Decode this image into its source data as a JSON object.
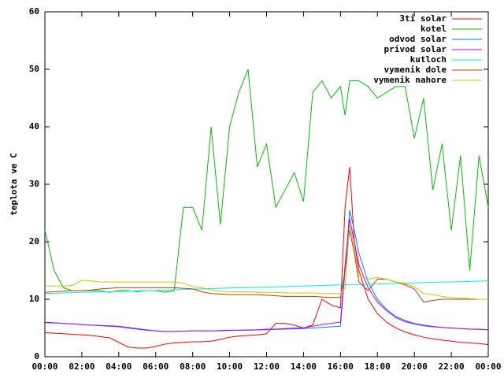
{
  "chart_data": {
    "type": "line",
    "y_label": "teplota ve C",
    "x": [
      0,
      0.5,
      1,
      1.5,
      2,
      2.5,
      3,
      3.5,
      4,
      4.5,
      5,
      5.5,
      6,
      6.5,
      7,
      7.5,
      8,
      8.5,
      9,
      9.5,
      10,
      10.5,
      11,
      11.5,
      12,
      12.5,
      13,
      13.5,
      14,
      14.5,
      15,
      15.5,
      16,
      16.25,
      16.5,
      16.75,
      17,
      17.5,
      18,
      18.5,
      19,
      19.5,
      20,
      20.5,
      21,
      21.5,
      22,
      22.5,
      23,
      23.5,
      24
    ],
    "xlim": [
      0,
      24
    ],
    "xticks": [
      {
        "value": 0,
        "label": "00:00"
      },
      {
        "value": 2,
        "label": "02:00"
      },
      {
        "value": 4,
        "label": "04:00"
      },
      {
        "value": 6,
        "label": "06:00"
      },
      {
        "value": 8,
        "label": "08:00"
      },
      {
        "value": 10,
        "label": "10:00"
      },
      {
        "value": 12,
        "label": "12:00"
      },
      {
        "value": 14,
        "label": "14:00"
      },
      {
        "value": 16,
        "label": "16:00"
      },
      {
        "value": 18,
        "label": "18:00"
      },
      {
        "value": 20,
        "label": "20:00"
      },
      {
        "value": 22,
        "label": "22:00"
      },
      {
        "value": 24,
        "label": "00:00"
      }
    ],
    "ylim": [
      0,
      60
    ],
    "yticks": [
      0,
      10,
      20,
      30,
      40,
      50,
      60
    ],
    "legend": "top-right",
    "series": [
      {
        "name": "3ti solar",
        "color": "#ff0000",
        "values": [
          4.2,
          4.1,
          4,
          3.9,
          3.8,
          3.7,
          3.5,
          3.3,
          2.5,
          1.7,
          1.5,
          1.5,
          1.8,
          2.2,
          2.4,
          2.5,
          2.6,
          2.6,
          2.7,
          3,
          3.4,
          3.6,
          3.7,
          3.8,
          4,
          5.8,
          5.8,
          5.5,
          5,
          5.5,
          10,
          9,
          8.5,
          26,
          33,
          20,
          15,
          10,
          7.5,
          6,
          5,
          4.3,
          3.8,
          3.4,
          3.1,
          2.9,
          2.7,
          2.5,
          2.4,
          2.3,
          2.1
        ]
      },
      {
        "name": "kotel",
        "color": "#00c000",
        "values": [
          22,
          15,
          12,
          11.5,
          11.5,
          11.5,
          11.5,
          11.2,
          11.5,
          11.5,
          11.3,
          11.5,
          11.5,
          11.2,
          11.5,
          26,
          26,
          22,
          40,
          23,
          40,
          46,
          50,
          33,
          37,
          26,
          29,
          32,
          27,
          46,
          48,
          45,
          47,
          42,
          48,
          48,
          48,
          47,
          45,
          46,
          47,
          47,
          38,
          45,
          29,
          37,
          22,
          35,
          15,
          35,
          26
        ]
      },
      {
        "name": "odvod solar",
        "color": "#0080ff",
        "values": [
          5.9,
          5.85,
          5.8,
          5.7,
          5.6,
          5.5,
          5.45,
          5.4,
          5.3,
          5.1,
          4.9,
          4.7,
          4.5,
          4.4,
          4.4,
          4.45,
          4.5,
          4.5,
          4.5,
          4.5,
          4.55,
          4.6,
          4.6,
          4.65,
          4.7,
          4.75,
          4.8,
          4.85,
          4.9,
          5,
          5.1,
          5.2,
          5.3,
          15,
          25.5,
          22,
          18,
          13,
          10,
          8.2,
          7,
          6.3,
          5.8,
          5.5,
          5.3,
          5.1,
          5,
          4.9,
          4.8,
          4.75,
          4.7
        ]
      },
      {
        "name": "privod solar",
        "color": "#c000ff",
        "values": [
          6,
          5.9,
          5.8,
          5.7,
          5.6,
          5.5,
          5.4,
          5.3,
          5.2,
          5,
          4.8,
          4.6,
          4.5,
          4.4,
          4.4,
          4.45,
          4.5,
          4.5,
          4.5,
          4.55,
          4.6,
          4.6,
          4.65,
          4.7,
          4.8,
          4.8,
          4.9,
          5,
          5,
          5.3,
          5.6,
          5.8,
          6,
          16,
          24,
          20,
          16,
          12,
          9.5,
          8,
          6.8,
          6.1,
          5.7,
          5.4,
          5.2,
          5.1,
          5,
          4.9,
          4.8,
          4.8,
          4.7
        ]
      },
      {
        "name": "kutloch",
        "color": "#00eeee",
        "values": [
          11,
          11.05,
          11.1,
          11.15,
          11.2,
          11.25,
          11.3,
          11.3,
          11.35,
          11.4,
          11.45,
          11.5,
          11.55,
          11.6,
          11.65,
          11.7,
          11.75,
          11.8,
          11.85,
          11.9,
          11.95,
          12,
          12,
          12.05,
          12.1,
          12.15,
          12.2,
          12.25,
          12.3,
          12.35,
          12.4,
          12.45,
          12.5,
          12.5,
          12.5,
          12.55,
          12.55,
          12.6,
          12.65,
          12.7,
          12.75,
          12.8,
          12.85,
          12.9,
          12.95,
          13,
          13,
          13.05,
          13.1,
          13.15,
          13.2
        ]
      },
      {
        "name": "vymenik dole",
        "color": "#c04000",
        "values": [
          11.2,
          11.3,
          11.4,
          11.5,
          11.5,
          11.6,
          11.8,
          11.9,
          12,
          12,
          12,
          12,
          12,
          12,
          12,
          11.9,
          11.8,
          11.3,
          11,
          10.9,
          10.8,
          10.8,
          10.8,
          10.8,
          10.7,
          10.6,
          10.5,
          10.5,
          10.5,
          10.5,
          10.4,
          10.3,
          10.3,
          15,
          22,
          18,
          13,
          11.5,
          13.5,
          13.5,
          13,
          12.5,
          11.8,
          9.5,
          9.8,
          10,
          10,
          10,
          10,
          10,
          10
        ]
      },
      {
        "name": "vymenik nahore",
        "color": "#c8c800",
        "values": [
          12.3,
          12.3,
          12.3,
          12.4,
          13.3,
          13.2,
          13,
          13,
          13,
          13,
          13,
          13,
          13,
          13,
          13,
          12.8,
          12.2,
          12,
          11.6,
          11.4,
          11.3,
          11.3,
          11.3,
          11.2,
          11.2,
          11.2,
          11.1,
          11.1,
          11.1,
          11.1,
          11,
          11,
          11,
          12,
          23,
          19,
          14,
          13.5,
          13.8,
          13.5,
          13,
          12.7,
          12.2,
          11,
          10.8,
          10.5,
          10.3,
          10.2,
          10.1,
          10,
          10
        ]
      }
    ]
  }
}
